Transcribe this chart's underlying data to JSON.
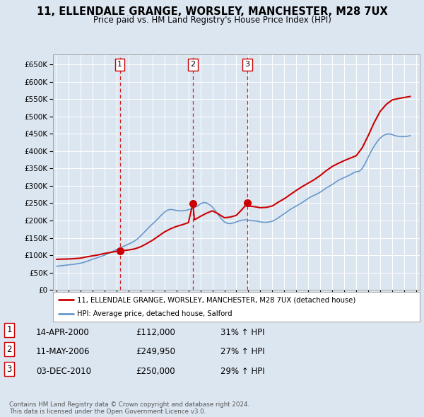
{
  "title": "11, ELLENDALE GRANGE, WORSLEY, MANCHESTER, M28 7UX",
  "subtitle": "Price paid vs. HM Land Registry's House Price Index (HPI)",
  "ylim": [
    0,
    680000
  ],
  "yticks": [
    0,
    50000,
    100000,
    150000,
    200000,
    250000,
    300000,
    350000,
    400000,
    450000,
    500000,
    550000,
    600000,
    650000
  ],
  "ytick_labels": [
    "£0",
    "£50K",
    "£100K",
    "£150K",
    "£200K",
    "£250K",
    "£300K",
    "£350K",
    "£400K",
    "£450K",
    "£500K",
    "£550K",
    "£600K",
    "£650K"
  ],
  "background_color": "#dce6f1",
  "plot_bg_color": "#dce6f1",
  "transaction_dates": [
    2000.29,
    2006.37,
    2010.92
  ],
  "transaction_prices": [
    112000,
    249950,
    250000
  ],
  "transaction_labels": [
    "1",
    "2",
    "3"
  ],
  "legend_entry1": "11, ELLENDALE GRANGE, WORSLEY, MANCHESTER, M28 7UX (detached house)",
  "legend_entry2": "HPI: Average price, detached house, Salford",
  "table_rows": [
    [
      "1",
      "14-APR-2000",
      "£112,000",
      "31% ↑ HPI"
    ],
    [
      "2",
      "11-MAY-2006",
      "£249,950",
      "27% ↑ HPI"
    ],
    [
      "3",
      "03-DEC-2010",
      "£250,000",
      "29% ↑ HPI"
    ]
  ],
  "footer": "Contains HM Land Registry data © Crown copyright and database right 2024.\nThis data is licensed under the Open Government Licence v3.0.",
  "red_line_color": "#cc0000",
  "blue_line_color": "#6699cc",
  "hpi_data_x": [
    1995.0,
    1995.25,
    1995.5,
    1995.75,
    1996.0,
    1996.25,
    1996.5,
    1996.75,
    1997.0,
    1997.25,
    1997.5,
    1997.75,
    1998.0,
    1998.25,
    1998.5,
    1998.75,
    1999.0,
    1999.25,
    1999.5,
    1999.75,
    2000.0,
    2000.25,
    2000.5,
    2000.75,
    2001.0,
    2001.25,
    2001.5,
    2001.75,
    2002.0,
    2002.25,
    2002.5,
    2002.75,
    2003.0,
    2003.25,
    2003.5,
    2003.75,
    2004.0,
    2004.25,
    2004.5,
    2004.75,
    2005.0,
    2005.25,
    2005.5,
    2005.75,
    2006.0,
    2006.25,
    2006.5,
    2006.75,
    2007.0,
    2007.25,
    2007.5,
    2007.75,
    2008.0,
    2008.25,
    2008.5,
    2008.75,
    2009.0,
    2009.25,
    2009.5,
    2009.75,
    2010.0,
    2010.25,
    2010.5,
    2010.75,
    2011.0,
    2011.25,
    2011.5,
    2011.75,
    2012.0,
    2012.25,
    2012.5,
    2012.75,
    2013.0,
    2013.25,
    2013.5,
    2013.75,
    2014.0,
    2014.25,
    2014.5,
    2014.75,
    2015.0,
    2015.25,
    2015.5,
    2015.75,
    2016.0,
    2016.25,
    2016.5,
    2016.75,
    2017.0,
    2017.25,
    2017.5,
    2017.75,
    2018.0,
    2018.25,
    2018.5,
    2018.75,
    2019.0,
    2019.25,
    2019.5,
    2019.75,
    2020.0,
    2020.25,
    2020.5,
    2020.75,
    2021.0,
    2021.25,
    2021.5,
    2021.75,
    2022.0,
    2022.25,
    2022.5,
    2022.75,
    2023.0,
    2023.25,
    2023.5,
    2023.75,
    2024.0,
    2024.25,
    2024.5
  ],
  "hpi_data_y": [
    68000,
    69000,
    70000,
    71000,
    72000,
    73000,
    74000,
    75500,
    77000,
    79000,
    82000,
    85000,
    88000,
    91000,
    94000,
    97000,
    100000,
    104000,
    108000,
    112000,
    116000,
    120000,
    124000,
    128000,
    132000,
    136000,
    141000,
    147000,
    155000,
    164000,
    173000,
    182000,
    190000,
    198000,
    207000,
    216000,
    224000,
    230000,
    232000,
    231000,
    229000,
    228000,
    228000,
    229000,
    231000,
    234000,
    238000,
    242000,
    248000,
    252000,
    251000,
    246000,
    239000,
    228000,
    216000,
    205000,
    196000,
    192000,
    191000,
    193000,
    196000,
    199000,
    201000,
    202000,
    201000,
    200000,
    199000,
    198000,
    196000,
    195000,
    195000,
    196000,
    198000,
    202000,
    208000,
    214000,
    220000,
    226000,
    232000,
    237000,
    242000,
    247000,
    252000,
    258000,
    264000,
    269000,
    273000,
    277000,
    282000,
    288000,
    294000,
    299000,
    304000,
    310000,
    316000,
    320000,
    324000,
    328000,
    332000,
    337000,
    341000,
    342000,
    350000,
    365000,
    383000,
    400000,
    415000,
    428000,
    438000,
    445000,
    449000,
    450000,
    448000,
    445000,
    443000,
    442000,
    442000,
    443000,
    445000
  ],
  "price_data_x": [
    1995.0,
    1995.5,
    1996.0,
    1996.5,
    1997.0,
    1997.5,
    1998.0,
    1998.5,
    1999.0,
    1999.5,
    2000.0,
    2000.29,
    2000.5,
    2000.75,
    2001.0,
    2001.5,
    2002.0,
    2002.5,
    2003.0,
    2003.5,
    2004.0,
    2004.5,
    2005.0,
    2005.5,
    2006.0,
    2006.37,
    2006.5,
    2007.0,
    2007.5,
    2008.0,
    2008.5,
    2009.0,
    2009.5,
    2010.0,
    2010.5,
    2010.92,
    2011.0,
    2011.5,
    2012.0,
    2012.5,
    2013.0,
    2013.5,
    2014.0,
    2014.5,
    2015.0,
    2015.5,
    2016.0,
    2016.5,
    2017.0,
    2017.5,
    2018.0,
    2018.5,
    2019.0,
    2019.5,
    2020.0,
    2020.5,
    2021.0,
    2021.5,
    2022.0,
    2022.5,
    2023.0,
    2023.5,
    2024.0,
    2024.5
  ],
  "price_data_y": [
    88000,
    88500,
    89000,
    90000,
    91500,
    95000,
    98000,
    101000,
    105000,
    108000,
    111000,
    112000,
    113000,
    114000,
    115000,
    118000,
    124000,
    133000,
    143000,
    155000,
    167000,
    176000,
    183000,
    188000,
    194000,
    249950,
    202000,
    212000,
    221000,
    228000,
    219000,
    208000,
    210000,
    215000,
    233000,
    250000,
    242000,
    240000,
    237000,
    238000,
    242000,
    253000,
    263000,
    275000,
    287000,
    298000,
    308000,
    318000,
    330000,
    344000,
    356000,
    365000,
    373000,
    380000,
    387000,
    410000,
    445000,
    483000,
    515000,
    535000,
    548000,
    552000,
    555000,
    558000
  ]
}
